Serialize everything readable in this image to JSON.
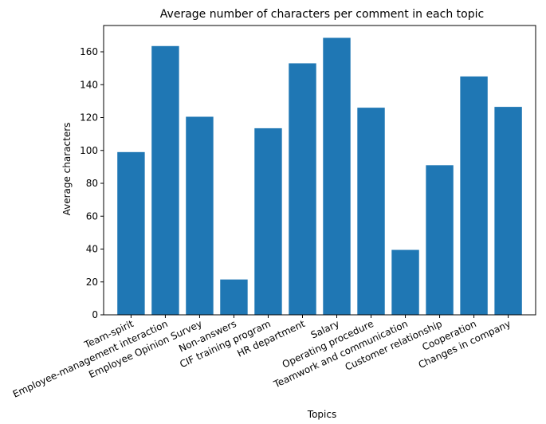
{
  "chart_data": {
    "type": "bar",
    "title": "Average number of characters per comment in each topic",
    "xlabel": "Topics",
    "ylabel": "Average characters",
    "categories": [
      "Team-spirit",
      "Employee-management interaction",
      "Employee Opinion Survey",
      "Non-answers",
      "CIF training program",
      "HR department",
      "Salary",
      "Operating procedure",
      "Teamwork and communication",
      "Customer relationship",
      "Cooperation",
      "Changes in company"
    ],
    "values": [
      99,
      163.5,
      120.5,
      21.5,
      113.5,
      153,
      168.5,
      126,
      39.5,
      91,
      145,
      126.5
    ],
    "ylim": [
      0,
      176
    ],
    "yticks": [
      0,
      20,
      40,
      60,
      80,
      100,
      120,
      140,
      160
    ],
    "bar_color": "#1f77b4",
    "grid": false,
    "legend": "none"
  }
}
